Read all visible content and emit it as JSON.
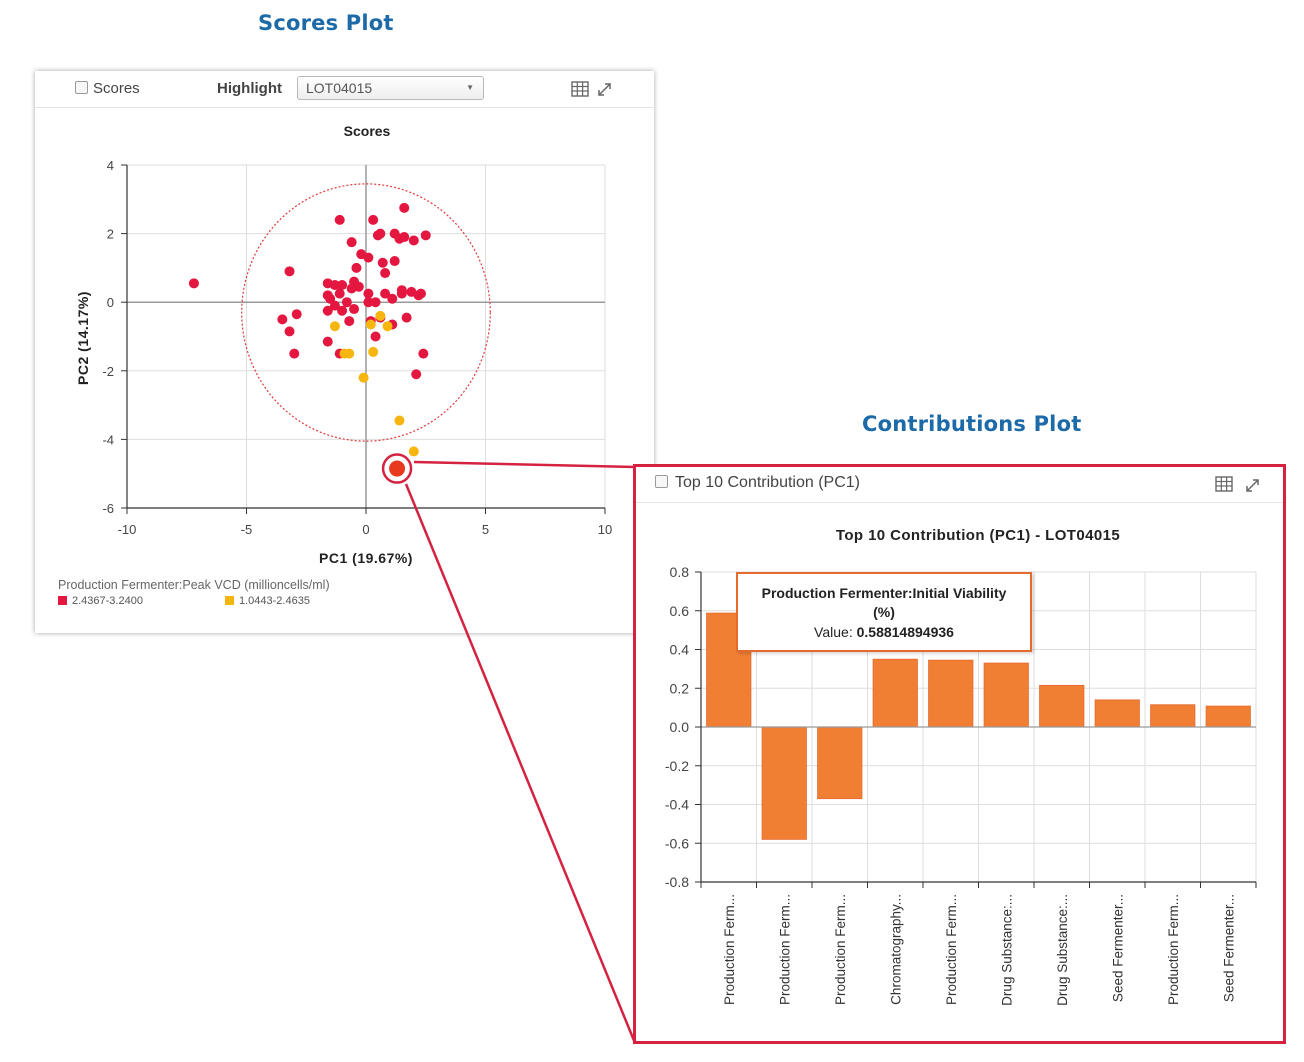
{
  "headings": {
    "scores": "Scores Plot",
    "contributions": "Contributions Plot"
  },
  "scores_panel": {
    "toolbar": {
      "checkbox_label": "Scores",
      "highlight_label": "Highlight",
      "highlight_value": "LOT04015",
      "table_icon": "table-icon",
      "expand_icon": "expand-icon"
    },
    "legend": {
      "title": "Production Fermenter:Peak VCD (millioncells/ml)",
      "items": [
        {
          "label": "2.4367-3.2400",
          "color": "#e3173f"
        },
        {
          "label": "1.0443-2.4635",
          "color": "#f6b60f"
        }
      ]
    }
  },
  "contrib_panel": {
    "toolbar": {
      "checkbox_label": "Top 10 Contribution (PC1)",
      "table_icon": "table-icon",
      "expand_icon": "expand-icon"
    },
    "tooltip": {
      "title": "Production Fermenter:Initial Viability (%)",
      "value_label": "Value:",
      "value": "0.58814894936"
    }
  },
  "colors": {
    "heading": "#1d6aa8",
    "red_point": "#e3173f",
    "yellow_point": "#f6b60f",
    "bar": "#f07f34",
    "callout": "#d42240"
  },
  "chart_data": [
    {
      "type": "scatter",
      "title": "Scores",
      "xlabel": "PC1 (19.67%)",
      "ylabel": "PC2 (14.17%)",
      "xlim": [
        -10,
        10
      ],
      "ylim": [
        -6,
        4
      ],
      "xticks": [
        -10,
        -5,
        0,
        5,
        10
      ],
      "yticks": [
        -6,
        -4,
        -2,
        0,
        2,
        4
      ],
      "grid": true,
      "confidence_ellipse": {
        "center": [
          0,
          -0.3
        ],
        "rx": 5.2,
        "ry": 3.75
      },
      "series": [
        {
          "name": "2.4367-3.2400",
          "color": "#e3173f",
          "points": [
            [
              -7.2,
              0.55
            ],
            [
              -3.2,
              0.9
            ],
            [
              -2.9,
              -0.35
            ],
            [
              -3.5,
              -0.5
            ],
            [
              -3.2,
              -0.85
            ],
            [
              -3.0,
              -1.5
            ],
            [
              -1.1,
              2.4
            ],
            [
              -0.6,
              1.75
            ],
            [
              -0.4,
              1.0
            ],
            [
              -0.2,
              1.4
            ],
            [
              0.1,
              1.3
            ],
            [
              -1.6,
              0.55
            ],
            [
              -1.3,
              0.5
            ],
            [
              -1.0,
              0.5
            ],
            [
              -0.5,
              0.6
            ],
            [
              -0.3,
              0.45
            ],
            [
              -0.6,
              0.4
            ],
            [
              -1.5,
              0.1
            ],
            [
              -1.1,
              0.25
            ],
            [
              -1.6,
              0.2
            ],
            [
              -1.3,
              -0.1
            ],
            [
              -0.8,
              0.0
            ],
            [
              -1.0,
              -0.25
            ],
            [
              -0.5,
              -0.2
            ],
            [
              -1.6,
              -0.25
            ],
            [
              -0.7,
              -0.55
            ],
            [
              -1.6,
              -1.15
            ],
            [
              -1.1,
              -1.5
            ],
            [
              0.1,
              0.25
            ],
            [
              0.3,
              2.4
            ],
            [
              0.5,
              1.95
            ],
            [
              0.6,
              2.0
            ],
            [
              1.2,
              2.0
            ],
            [
              1.4,
              1.85
            ],
            [
              1.6,
              1.9
            ],
            [
              2.0,
              1.8
            ],
            [
              1.6,
              2.75
            ],
            [
              2.5,
              1.95
            ],
            [
              0.7,
              1.15
            ],
            [
              1.2,
              1.2
            ],
            [
              0.8,
              0.85
            ],
            [
              0.1,
              0.0
            ],
            [
              0.4,
              0.0
            ],
            [
              0.8,
              0.25
            ],
            [
              1.1,
              0.1
            ],
            [
              1.5,
              0.25
            ],
            [
              1.5,
              0.35
            ],
            [
              1.9,
              0.3
            ],
            [
              2.3,
              0.25
            ],
            [
              2.2,
              0.2
            ],
            [
              0.6,
              -0.45
            ],
            [
              1.1,
              -0.65
            ],
            [
              1.7,
              -0.45
            ],
            [
              2.4,
              -1.5
            ],
            [
              2.1,
              -2.1
            ],
            [
              0.2,
              -0.55
            ],
            [
              0.4,
              -1.0
            ]
          ]
        },
        {
          "name": "1.0443-2.4635",
          "color": "#f6b60f",
          "points": [
            [
              -1.3,
              -0.7
            ],
            [
              -0.9,
              -1.5
            ],
            [
              -0.7,
              -1.5
            ],
            [
              -0.1,
              -2.2
            ],
            [
              0.2,
              -0.65
            ],
            [
              0.6,
              -0.4
            ],
            [
              0.9,
              -0.7
            ],
            [
              0.3,
              -1.45
            ],
            [
              1.4,
              -3.45
            ],
            [
              2.0,
              -4.35
            ]
          ]
        },
        {
          "name": "LOT04015",
          "color": "#e8391e",
          "points": [
            [
              1.3,
              -4.85
            ]
          ]
        }
      ]
    },
    {
      "type": "bar",
      "title": "Top 10 Contribution (PC1) - LOT04015",
      "xlabel": "",
      "ylabel": "",
      "ylim": [
        -0.8,
        0.8
      ],
      "yticks": [
        -0.8,
        -0.6,
        -0.4,
        -0.2,
        0.0,
        0.2,
        0.4,
        0.6,
        0.8
      ],
      "grid": true,
      "categories": [
        "Production Ferm...",
        "Production Ferm...",
        "Production Ferm...",
        "Chromatography...",
        "Production Ferm...",
        "Drug Substance:...",
        "Drug Substance:...",
        "Seed Fermenter...",
        "Production Ferm...",
        "Seed Fermenter..."
      ],
      "values": [
        0.588,
        -0.58,
        -0.37,
        0.35,
        0.345,
        0.33,
        0.215,
        0.14,
        0.115,
        0.108
      ]
    }
  ]
}
